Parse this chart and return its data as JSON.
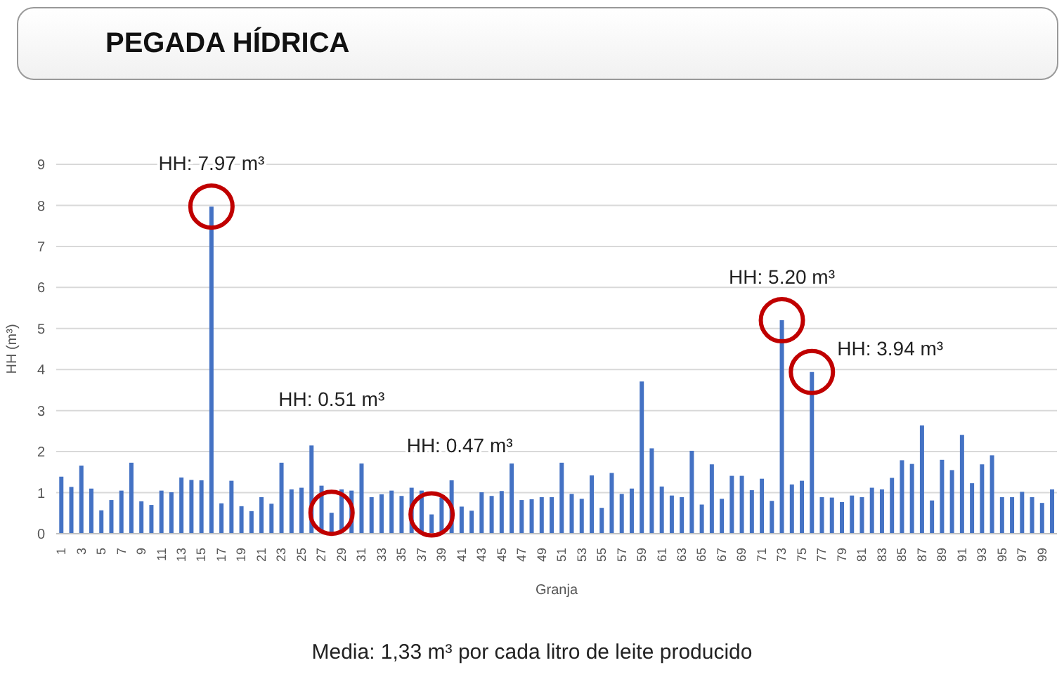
{
  "chart_data": {
    "type": "bar",
    "title": "PEGADA HÍDRICA",
    "xlabel": "Granja",
    "ylabel": "HH (m³)",
    "categories": [
      "1",
      null,
      "3",
      null,
      "5",
      null,
      "7",
      null,
      "9",
      null,
      "11",
      null,
      "13",
      null,
      "15",
      null,
      "17",
      null,
      "19",
      null,
      "21",
      null,
      "23",
      null,
      "25",
      null,
      "27",
      null,
      "29",
      null,
      "31",
      null,
      "33",
      null,
      "35",
      null,
      "37",
      null,
      "39",
      null,
      "41",
      null,
      "43",
      null,
      "45",
      null,
      "47",
      null,
      "49",
      null,
      "51",
      null,
      "53",
      null,
      "55",
      null,
      "57",
      null,
      "59",
      null,
      "61",
      null,
      "63",
      null,
      "65",
      null,
      "67",
      null,
      "69",
      null,
      "71",
      null,
      "73",
      null,
      "75",
      null,
      "77",
      null,
      "79",
      null,
      "81",
      null,
      "83",
      null,
      "85",
      null,
      "87",
      null,
      "89",
      null,
      "91",
      null,
      "93",
      null,
      "95",
      null,
      "97",
      null,
      "99",
      null
    ],
    "values": [
      1.39,
      1.14,
      1.66,
      1.1,
      0.57,
      0.82,
      1.05,
      1.73,
      0.79,
      0.7,
      1.05,
      1.01,
      1.37,
      1.31,
      1.3,
      7.97,
      0.74,
      1.29,
      0.67,
      0.55,
      0.89,
      0.73,
      1.73,
      1.08,
      1.12,
      2.15,
      1.17,
      0.51,
      1.08,
      1.05,
      1.71,
      0.89,
      0.96,
      1.05,
      0.92,
      1.12,
      1.05,
      0.47,
      0.88,
      1.3,
      0.66,
      0.56,
      1.01,
      0.92,
      1.04,
      1.71,
      0.82,
      0.84,
      0.89,
      0.89,
      1.73,
      0.97,
      0.85,
      1.42,
      0.63,
      1.48,
      0.97,
      1.1,
      3.71,
      2.08,
      1.15,
      0.93,
      0.89,
      2.02,
      0.71,
      1.69,
      0.85,
      1.41,
      1.41,
      1.06,
      1.34,
      0.8,
      5.2,
      1.2,
      1.29,
      3.94,
      0.89,
      0.88,
      0.77,
      0.93,
      0.89,
      1.12,
      1.08,
      1.36,
      1.79,
      1.7,
      2.64,
      0.81,
      1.8,
      1.55,
      2.41,
      1.23,
      1.69,
      1.91,
      0.89,
      0.89,
      1.02,
      0.89,
      0.75,
      1.08
    ],
    "color": "#4472c4",
    "ylim": [
      0,
      9
    ],
    "yticks": [
      0,
      1,
      2,
      3,
      4,
      5,
      6,
      7,
      8,
      9
    ],
    "grid": "y",
    "annotations": [
      {
        "text": "HH: 7.97 m³",
        "y": 7.97
      },
      "HH: 0.51 m³",
      {
        "text": "HH: 0.47 m³",
        "y": 0.47
      },
      {
        "text": "HH: 5.20 m³",
        "y": 5.2
      },
      "HH: 3.94 m³",
      "Media: 1,33 m³ por cada litro de leite producido"
    ]
  }
}
